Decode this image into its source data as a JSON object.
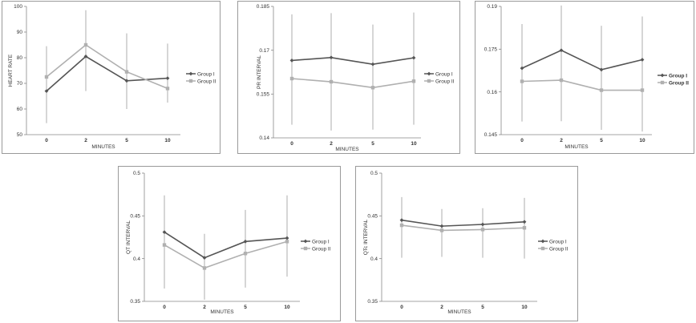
{
  "chart_data": [
    {
      "type": "line",
      "categories": [
        "0",
        "2",
        "5",
        "10"
      ],
      "xlabel": "MINUTES",
      "ylabel": "HEART RATE",
      "ylim": [
        50,
        100
      ],
      "yticks": [
        "50",
        "60",
        "70",
        "80",
        "90",
        "100"
      ],
      "legend_position": "right",
      "legend_bold": false,
      "series": [
        {
          "name": "Group I",
          "values": [
            67,
            80.5,
            71,
            72
          ],
          "color": "#555555",
          "marker": "diamond"
        },
        {
          "name": "Group II",
          "values": [
            72.5,
            85,
            74.5,
            68
          ],
          "color": "#b0b0b0",
          "marker": "square"
        }
      ],
      "error_bars": {
        "low": [
          54.5,
          67,
          60,
          62.5
        ],
        "high": [
          84.5,
          98.5,
          89.5,
          85.5
        ]
      }
    },
    {
      "type": "line",
      "categories": [
        "0",
        "2",
        "5",
        "10"
      ],
      "xlabel": "MINUTES",
      "ylabel": "PR INTERVAL",
      "ylim": [
        0.14,
        0.185
      ],
      "yticks": [
        "0.14",
        "0.155",
        "0.17",
        "0.185"
      ],
      "legend_position": "right",
      "legend_bold": false,
      "series": [
        {
          "name": "Group I",
          "values": [
            0.1665,
            0.1675,
            0.1652,
            0.1674
          ],
          "color": "#555555",
          "marker": "diamond"
        },
        {
          "name": "Group II",
          "values": [
            0.1603,
            0.1592,
            0.1572,
            0.1594
          ],
          "color": "#b0b0b0",
          "marker": "square"
        }
      ],
      "error_bars": {
        "low": [
          0.1445,
          0.1425,
          0.1428,
          0.1445
        ],
        "high": [
          0.1823,
          0.1827,
          0.1788,
          0.1829
        ]
      }
    },
    {
      "type": "line",
      "categories": [
        "0",
        "2",
        "5",
        "10"
      ],
      "xlabel": "MINUTES",
      "ylabel": "",
      "ylim": [
        0.145,
        0.19
      ],
      "yticks": [
        "0.145",
        "0.16",
        "0.175",
        "0.19"
      ],
      "legend_position": "right",
      "legend_bold": true,
      "series": [
        {
          "name": "Group I",
          "values": [
            0.1683,
            0.1746,
            0.1678,
            0.1713
          ],
          "color": "#555555",
          "marker": "diamond"
        },
        {
          "name": "Group II",
          "values": [
            0.1637,
            0.1641,
            0.1606,
            0.1606
          ],
          "color": "#b0b0b0",
          "marker": "square"
        }
      ],
      "error_bars": {
        "low": [
          0.1496,
          0.1497,
          0.1467,
          0.1461
        ],
        "high": [
          0.1838,
          0.1903,
          0.1832,
          0.1865
        ]
      }
    },
    {
      "type": "line",
      "categories": [
        "0",
        "2",
        "5",
        "10"
      ],
      "xlabel": "MINUTES",
      "ylabel": "QT INTERVAL",
      "ylim": [
        0.35,
        0.5
      ],
      "yticks": [
        "0.35",
        "0.4",
        "0.45",
        "0.5"
      ],
      "legend_position": "right",
      "legend_bold": false,
      "series": [
        {
          "name": "Group I",
          "values": [
            0.431,
            0.401,
            0.42,
            0.424
          ],
          "color": "#555555",
          "marker": "diamond"
        },
        {
          "name": "Group II",
          "values": [
            0.416,
            0.389,
            0.406,
            0.42
          ],
          "color": "#b0b0b0",
          "marker": "square"
        }
      ],
      "error_bars": {
        "low": [
          0.365,
          0.352,
          0.366,
          0.379
        ],
        "high": [
          0.474,
          0.429,
          0.457,
          0.474
        ]
      }
    },
    {
      "type": "line",
      "categories": [
        "0",
        "2",
        "5",
        "10"
      ],
      "xlabel": "MINUTES",
      "ylabel": "QTc INTERVAL",
      "ylim": [
        0.35,
        0.5
      ],
      "yticks": [
        "0.35",
        "0.4",
        "0.45",
        "0.5"
      ],
      "legend_position": "right",
      "legend_bold": false,
      "series": [
        {
          "name": "Group I",
          "values": [
            0.445,
            0.438,
            0.44,
            0.443
          ],
          "color": "#555555",
          "marker": "diamond"
        },
        {
          "name": "Group II",
          "values": [
            0.439,
            0.433,
            0.434,
            0.436
          ],
          "color": "#b0b0b0",
          "marker": "square"
        }
      ],
      "error_bars": {
        "low": [
          0.401,
          0.402,
          0.401,
          0.4
        ],
        "high": [
          0.472,
          0.458,
          0.459,
          0.471
        ]
      }
    }
  ]
}
